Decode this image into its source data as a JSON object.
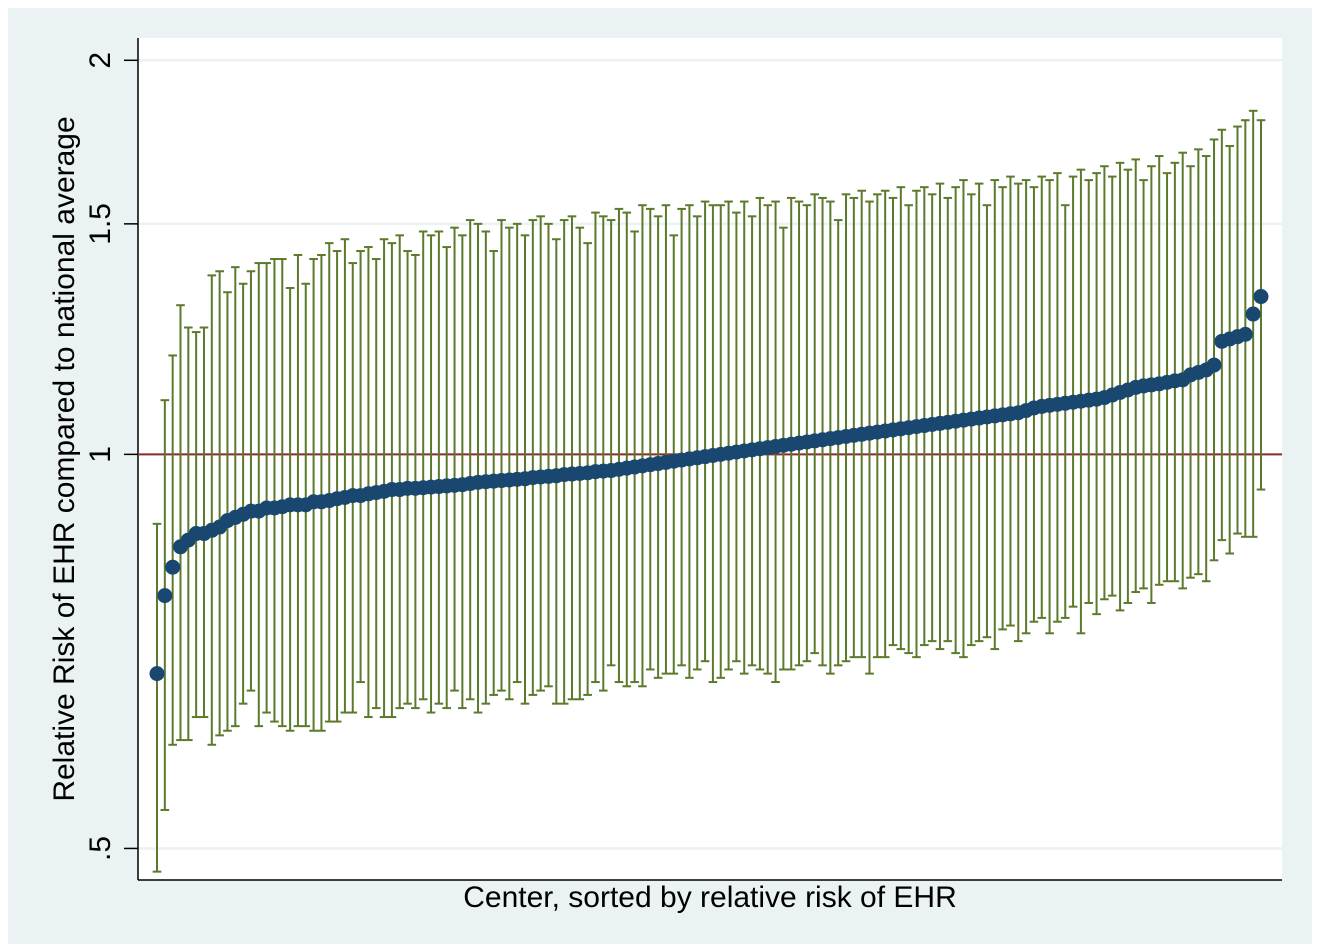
{
  "chart_data": {
    "type": "errorbar",
    "xlabel": "Center, sorted by relative risk of EHR",
    "ylabel": "Relative Risk of EHR compared to national average",
    "log_y": true,
    "ylim": [
      0.473,
      2.08
    ],
    "yticks": [
      {
        "value": 0.5,
        "label": ".5"
      },
      1,
      1.5,
      2
    ],
    "grid": true,
    "reference_line": {
      "value": 1,
      "color": "#8c2d2d"
    },
    "marker_color": "#1a476f",
    "bar_color": "#5b7a2b",
    "values": [
      0.68,
      0.78,
      0.82,
      0.85,
      0.86,
      0.87,
      0.87,
      0.875,
      0.88,
      0.89,
      0.895,
      0.9,
      0.905,
      0.905,
      0.91,
      0.91,
      0.912,
      0.915,
      0.915,
      0.915,
      0.92,
      0.92,
      0.922,
      0.925,
      0.927,
      0.93,
      0.93,
      0.933,
      0.935,
      0.937,
      0.94,
      0.94,
      0.942,
      0.942,
      0.943,
      0.944,
      0.945,
      0.946,
      0.947,
      0.948,
      0.95,
      0.952,
      0.953,
      0.954,
      0.955,
      0.956,
      0.957,
      0.958,
      0.96,
      0.961,
      0.962,
      0.963,
      0.965,
      0.966,
      0.967,
      0.968,
      0.97,
      0.971,
      0.972,
      0.974,
      0.976,
      0.978,
      0.98,
      0.982,
      0.984,
      0.986,
      0.988,
      0.99,
      0.992,
      0.994,
      0.996,
      0.998,
      1.0,
      1.002,
      1.004,
      1.006,
      1.008,
      1.01,
      1.012,
      1.014,
      1.016,
      1.018,
      1.02,
      1.022,
      1.024,
      1.026,
      1.028,
      1.03,
      1.032,
      1.034,
      1.036,
      1.038,
      1.04,
      1.042,
      1.044,
      1.046,
      1.048,
      1.05,
      1.052,
      1.054,
      1.056,
      1.058,
      1.06,
      1.062,
      1.064,
      1.066,
      1.068,
      1.07,
      1.072,
      1.074,
      1.076,
      1.08,
      1.085,
      1.088,
      1.09,
      1.092,
      1.094,
      1.096,
      1.098,
      1.1,
      1.102,
      1.105,
      1.11,
      1.115,
      1.12,
      1.125,
      1.128,
      1.13,
      1.132,
      1.135,
      1.138,
      1.14,
      1.15,
      1.155,
      1.16,
      1.17,
      1.22,
      1.225,
      1.23,
      1.235,
      1.28,
      1.32
    ],
    "upper": [
      0.885,
      1.1,
      1.19,
      1.3,
      1.25,
      1.24,
      1.25,
      1.37,
      1.38,
      1.33,
      1.39,
      1.35,
      1.38,
      1.4,
      1.4,
      1.41,
      1.41,
      1.34,
      1.42,
      1.35,
      1.41,
      1.42,
      1.45,
      1.43,
      1.46,
      1.4,
      1.43,
      1.44,
      1.41,
      1.46,
      1.45,
      1.47,
      1.43,
      1.42,
      1.48,
      1.47,
      1.48,
      1.44,
      1.49,
      1.47,
      1.51,
      1.5,
      1.48,
      1.43,
      1.51,
      1.49,
      1.5,
      1.47,
      1.51,
      1.52,
      1.5,
      1.46,
      1.51,
      1.52,
      1.49,
      1.45,
      1.53,
      1.52,
      1.51,
      1.54,
      1.53,
      1.48,
      1.55,
      1.54,
      1.52,
      1.55,
      1.47,
      1.54,
      1.55,
      1.52,
      1.56,
      1.55,
      1.55,
      1.56,
      1.53,
      1.56,
      1.52,
      1.57,
      1.55,
      1.56,
      1.49,
      1.57,
      1.56,
      1.55,
      1.58,
      1.57,
      1.56,
      1.51,
      1.58,
      1.57,
      1.59,
      1.56,
      1.58,
      1.59,
      1.57,
      1.6,
      1.55,
      1.59,
      1.6,
      1.58,
      1.61,
      1.57,
      1.6,
      1.62,
      1.58,
      1.61,
      1.55,
      1.62,
      1.6,
      1.63,
      1.61,
      1.62,
      1.6,
      1.63,
      1.62,
      1.64,
      1.55,
      1.63,
      1.65,
      1.62,
      1.64,
      1.66,
      1.63,
      1.67,
      1.65,
      1.68,
      1.62,
      1.66,
      1.69,
      1.64,
      1.67,
      1.7,
      1.66,
      1.71,
      1.69,
      1.74,
      1.77,
      1.72,
      1.78,
      1.8,
      1.83,
      1.8
    ],
    "lower": [
      0.48,
      0.535,
      0.6,
      0.605,
      0.605,
      0.63,
      0.63,
      0.6,
      0.61,
      0.615,
      0.62,
      0.645,
      0.66,
      0.62,
      0.635,
      0.625,
      0.62,
      0.615,
      0.62,
      0.62,
      0.615,
      0.615,
      0.625,
      0.625,
      0.635,
      0.635,
      0.67,
      0.63,
      0.64,
      0.63,
      0.63,
      0.64,
      0.645,
      0.64,
      0.65,
      0.635,
      0.645,
      0.64,
      0.66,
      0.64,
      0.65,
      0.635,
      0.645,
      0.655,
      0.66,
      0.65,
      0.67,
      0.645,
      0.655,
      0.66,
      0.665,
      0.645,
      0.645,
      0.65,
      0.65,
      0.655,
      0.67,
      0.66,
      0.69,
      0.67,
      0.665,
      0.67,
      0.665,
      0.685,
      0.675,
      0.68,
      0.68,
      0.69,
      0.675,
      0.685,
      0.695,
      0.67,
      0.675,
      0.685,
      0.695,
      0.68,
      0.69,
      0.685,
      0.68,
      0.67,
      0.685,
      0.685,
      0.69,
      0.695,
      0.705,
      0.69,
      0.68,
      0.69,
      0.695,
      0.7,
      0.7,
      0.68,
      0.7,
      0.7,
      0.715,
      0.71,
      0.705,
      0.7,
      0.715,
      0.72,
      0.71,
      0.72,
      0.705,
      0.7,
      0.715,
      0.72,
      0.725,
      0.71,
      0.735,
      0.74,
      0.72,
      0.73,
      0.745,
      0.75,
      0.73,
      0.745,
      0.75,
      0.765,
      0.73,
      0.77,
      0.755,
      0.775,
      0.78,
      0.76,
      0.77,
      0.785,
      0.79,
      0.77,
      0.795,
      0.8,
      0.8,
      0.79,
      0.805,
      0.81,
      0.8,
      0.83,
      0.86,
      0.84,
      0.87,
      0.865,
      0.865,
      0.94
    ]
  }
}
